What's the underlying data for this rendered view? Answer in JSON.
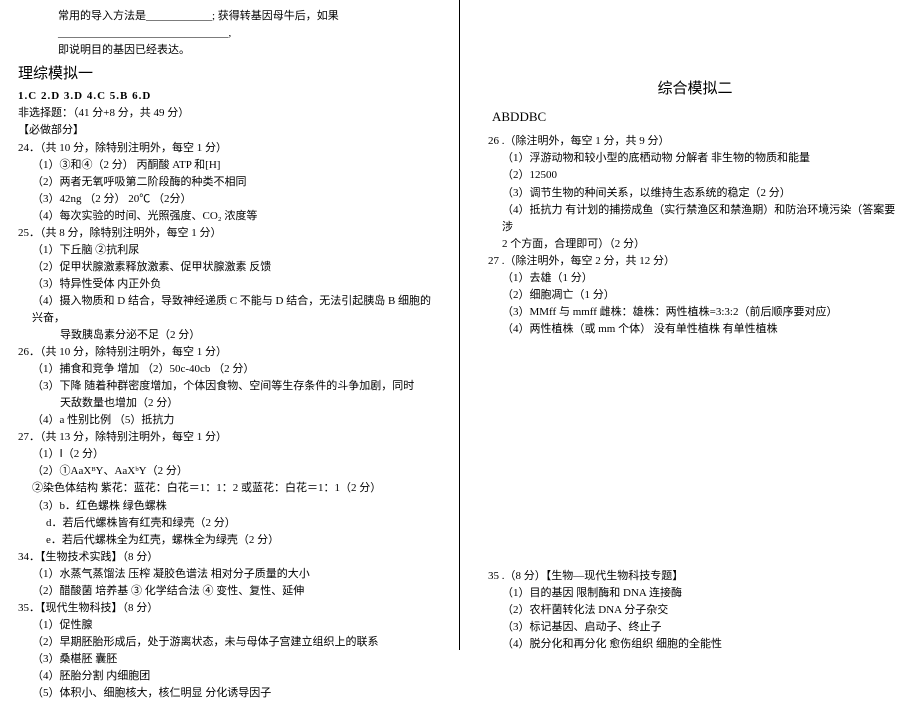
{
  "top": {
    "line1": "常用的导入方法是____________;   获得转基因母牛后，如果_______________________________,",
    "line2": "即说明目的基因已经表达。"
  },
  "left": {
    "title": "理综模拟一",
    "answers": "1.C   2.D    3.D    4.C   5.B    6.D",
    "nonchoice": "非选择题：（41 分+8 分，共 49 分）",
    "must": "【必做部分】",
    "q24": {
      "head": "24．（共 10 分，除特别注明外，每空 1 分）",
      "l1": "（1）③和④（2 分）        丙酮酸        ATP 和[H]",
      "l2": "（2）两者无氧呼吸第二阶段酶的种类不相同",
      "l3": "（3）42ng  （2 分）        20℃  （2分）",
      "l4": "（4）每次实验的时间、光照强度、CO₂ 浓度等"
    },
    "q25": {
      "head": "25．（共 8 分，除特别注明外，每空 1 分）",
      "l1": "（1）下丘脑            ②抗利尿",
      "l2": "（2）促甲状腺激素释放激素、促甲状腺激素            反馈",
      "l3": "（3）特异性受体      内正外负",
      "l4": "（4）摄入物质和 D 结合，导致神经递质 C 不能与 D 结合，无法引起胰岛 B 细胞的兴奋，",
      "l4b": "导致胰岛素分泌不足（2 分）"
    },
    "q26": {
      "head": "26．（共 10 分，除特别注明外，每空 1 分）",
      "l1": "（1）捕食和竞争    增加             （2）50c-40cb  （2 分）",
      "l2": "（3）下降      随着种群密度增加，个体因食物、空间等生存条件的斗争加剧，同时",
      "l2b": "天敌数量也增加（2 分）",
      "l3": "（4）a        性别比例      （5）抵抗力"
    },
    "q27": {
      "head": "27．（共 13 分，除特别注明外，每空 1 分）",
      "l1": "（1）Ⅰ（2 分）",
      "l2": "（2）①AaXᴮY、AaXᵇY（2 分）",
      "l3": "    ②染色体结构      紫花：蓝花：白花＝1：1：2 或蓝花：白花＝1：1（2 分）",
      "l4": "（3）b．红色螺株        绿色螺株",
      "l5": "     d．若后代螺株皆有红壳和绿壳（2 分）",
      "l6": "     e．若后代螺株全为红壳，螺株全为绿壳（2 分）"
    },
    "bio": {
      "head": "34．【生物技术实践】（8 分）",
      "l1": "（1）水蒸气蒸馏法    压榨    凝胶色谱法    相对分子质量的大小",
      "l2": "（2）醋酸菌        培养基    ③ 化学结合法    ④ 变性、复性、延伸"
    },
    "modern": {
      "head": "35．【现代生物科技】（8 分）",
      "l1": "（1）促性腺",
      "l2": "（2）早期胚胎形成后，处于游离状态，未与母体子宫建立组织上的联系",
      "l3": "（3）桑椹胚        囊胚",
      "l4": "（4）胚胎分割      内细胞团",
      "l5": "（5）体积小、细胞核大，核仁明显        分化诱导因子"
    }
  },
  "right": {
    "title": "综合模拟二",
    "answers": "ABDDBC",
    "q26": {
      "head": "26 .（除注明外，每空 1 分，共 9 分）",
      "l1": "（1）浮游动物和较小型的底栖动物      分解者      非生物的物质和能量",
      "l2": "（2）12500",
      "l3": "（3）调节生物的种间关系，以维持生态系统的稳定（2 分）",
      "l4": "（4）抵抗力    有计划的捕捞成鱼（实行禁渔区和禁渔期）和防治环境污染（答案要涉",
      "l4b": "2 个方面，合理即可）（2 分）"
    },
    "q27": {
      "head": "27 .（除注明外，每空 2 分，共 12 分）",
      "l1": "（1）去雄（1 分）",
      "l2": "（2）细胞凋亡（1 分）",
      "l3": "（3）MMff 与 mmff      雌株：雄株：两性植株=3:3:2（前后顺序要对应）",
      "l4": "（4）两性植株（或 mm 个体）      没有单性植株      有单性植株"
    },
    "q35": {
      "head": "35 .（8 分）【生物—现代生物科技专题】",
      "l1": "（1）目的基因    限制酶和 DNA 连接酶",
      "l2": "（2）农杆菌转化法    DNA 分子杂交",
      "l3": "（3）标记基因、启动子、终止子",
      "l4": "（4）脱分化和再分化    愈伤组织    细胞的全能性"
    }
  }
}
